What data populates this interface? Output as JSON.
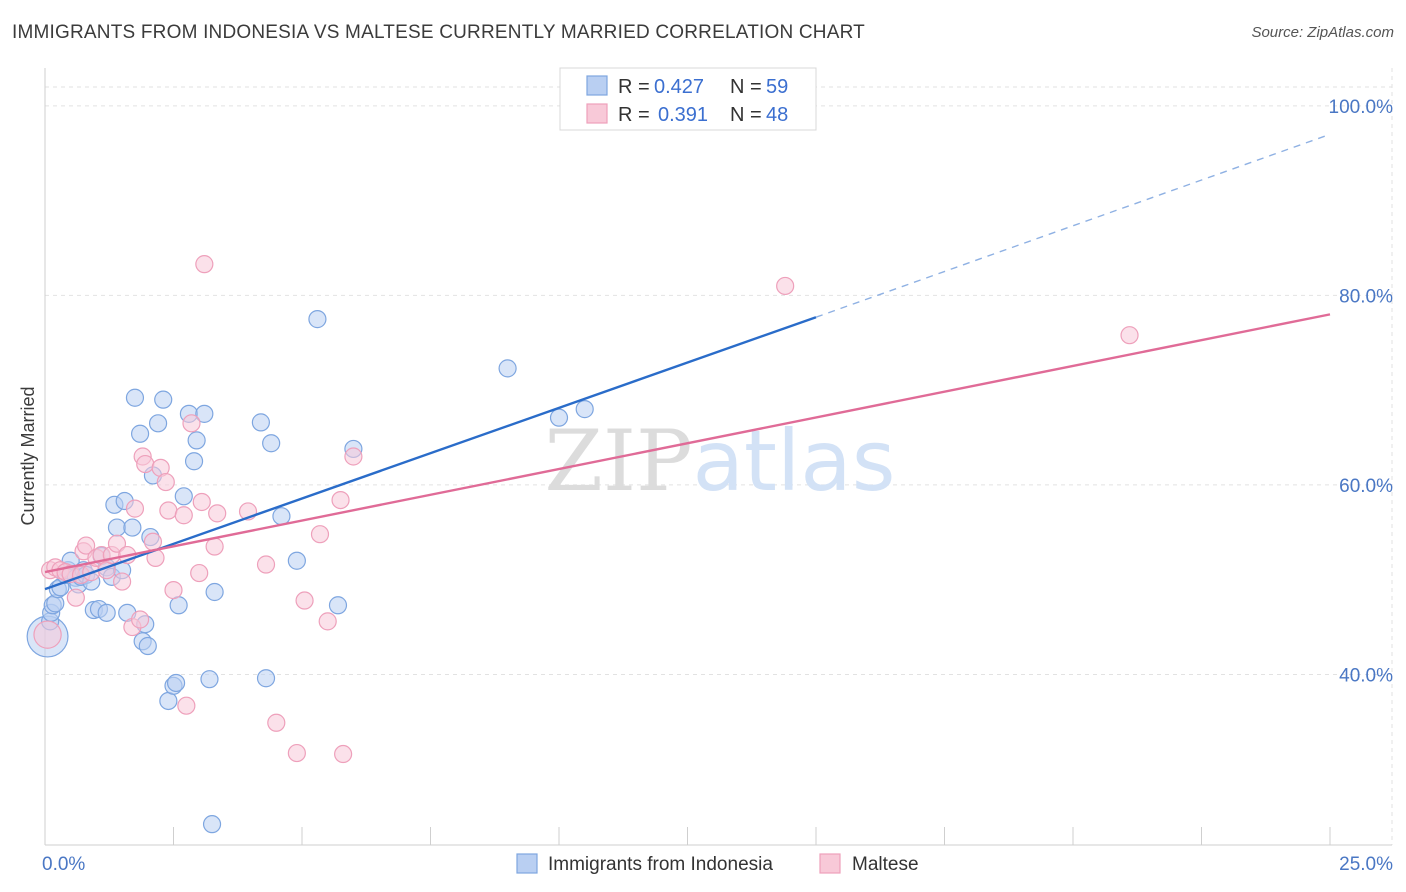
{
  "chart_data": {
    "type": "scatter",
    "title": "IMMIGRANTS FROM INDONESIA VS MALTESE CURRENTLY MARRIED CORRELATION CHART",
    "source": "Source: ZipAtlas.com",
    "xlabel": "",
    "ylabel": "Currently Married",
    "xlim": [
      0,
      25
    ],
    "ylim": [
      22,
      104
    ],
    "x_tick_labels": [
      {
        "value": 0,
        "label": "0.0%"
      },
      {
        "value": 25,
        "label": "25.0%"
      }
    ],
    "y_tick_labels": [
      {
        "value": 40,
        "label": "40.0%"
      },
      {
        "value": 60,
        "label": "60.0%"
      },
      {
        "value": 80,
        "label": "80.0%"
      },
      {
        "value": 100,
        "label": "100.0%"
      }
    ],
    "grid": true,
    "watermark": "ZIPatlas",
    "legend": {
      "position": "top-center",
      "entries": [
        {
          "r_label": "R =",
          "r_value": "0.427",
          "n_label": "N =",
          "n_value": "59"
        },
        {
          "r_label": "R =",
          "r_value": "0.391",
          "n_label": "N =",
          "n_value": "48"
        }
      ]
    },
    "series": [
      {
        "name": "Immigrants from Indonesia",
        "color": "#7ea6e0",
        "fill": "#b9cff2",
        "line_color": "#2a6cc9",
        "trend": {
          "x0": 0,
          "y0": 49.0,
          "x1": 15.0,
          "y1": 77.7,
          "dash_to_x": 25,
          "dash_to_y": 97.0
        },
        "points": [
          [
            0.05,
            44.0,
            2.4
          ],
          [
            0.1,
            45.6,
            1
          ],
          [
            0.12,
            46.5,
            1
          ],
          [
            0.15,
            47.3,
            1
          ],
          [
            0.2,
            47.5,
            1
          ],
          [
            0.25,
            49.0,
            1
          ],
          [
            0.3,
            49.2,
            1
          ],
          [
            0.4,
            50.5,
            1
          ],
          [
            0.45,
            51.0,
            1
          ],
          [
            0.5,
            52.0,
            1
          ],
          [
            0.6,
            50.2,
            1
          ],
          [
            0.65,
            49.5,
            1
          ],
          [
            0.7,
            50.3,
            1
          ],
          [
            0.75,
            51.0,
            1
          ],
          [
            0.8,
            50.5,
            1
          ],
          [
            0.9,
            49.8,
            1
          ],
          [
            0.95,
            46.8,
            1
          ],
          [
            1.05,
            46.9,
            1
          ],
          [
            1.1,
            52.5,
            1
          ],
          [
            1.2,
            46.5,
            1
          ],
          [
            1.2,
            51.3,
            1
          ],
          [
            1.3,
            50.3,
            1
          ],
          [
            1.35,
            57.9,
            1
          ],
          [
            1.4,
            55.5,
            1
          ],
          [
            1.5,
            51.0,
            1
          ],
          [
            1.55,
            58.3,
            1
          ],
          [
            1.6,
            46.5,
            1
          ],
          [
            1.7,
            55.5,
            1
          ],
          [
            1.75,
            69.2,
            1
          ],
          [
            1.85,
            65.4,
            1
          ],
          [
            1.9,
            43.5,
            1
          ],
          [
            1.95,
            45.3,
            1
          ],
          [
            2.0,
            43.0,
            1
          ],
          [
            2.05,
            54.5,
            1
          ],
          [
            2.1,
            61.0,
            1
          ],
          [
            2.2,
            66.5,
            1
          ],
          [
            2.3,
            69.0,
            1
          ],
          [
            2.4,
            37.2,
            1
          ],
          [
            2.5,
            38.8,
            1
          ],
          [
            2.55,
            39.1,
            1
          ],
          [
            2.6,
            47.3,
            1
          ],
          [
            2.7,
            58.8,
            1
          ],
          [
            2.8,
            67.5,
            1
          ],
          [
            2.9,
            62.5,
            1
          ],
          [
            2.95,
            64.7,
            1
          ],
          [
            3.1,
            67.5,
            1
          ],
          [
            3.2,
            39.5,
            1
          ],
          [
            3.25,
            24.2,
            1
          ],
          [
            3.3,
            48.7,
            1
          ],
          [
            4.2,
            66.6,
            1
          ],
          [
            4.3,
            39.6,
            1
          ],
          [
            4.4,
            64.4,
            1
          ],
          [
            4.6,
            56.7,
            1
          ],
          [
            4.9,
            52.0,
            1
          ],
          [
            5.3,
            77.5,
            1
          ],
          [
            5.7,
            47.3,
            1
          ],
          [
            6.0,
            63.8,
            1
          ],
          [
            9.0,
            72.3,
            1
          ],
          [
            10.0,
            67.1,
            1
          ],
          [
            10.5,
            68.0,
            1
          ]
        ]
      },
      {
        "name": "Maltese",
        "color": "#eea0bb",
        "fill": "#f8c9d8",
        "line_color": "#e06b97",
        "trend": {
          "x0": 0,
          "y0": 50.8,
          "x1": 25,
          "y1": 78.0
        },
        "points": [
          [
            0.05,
            44.2,
            1.6
          ],
          [
            0.1,
            51.0,
            1
          ],
          [
            0.2,
            51.3,
            1
          ],
          [
            0.3,
            51.0,
            1
          ],
          [
            0.4,
            50.8,
            1
          ],
          [
            0.5,
            50.6,
            1
          ],
          [
            0.6,
            48.1,
            1
          ],
          [
            0.7,
            50.5,
            1
          ],
          [
            0.75,
            53.0,
            1
          ],
          [
            0.8,
            53.6,
            1
          ],
          [
            0.9,
            50.8,
            1
          ],
          [
            1.0,
            52.3,
            1
          ],
          [
            1.1,
            52.6,
            1
          ],
          [
            1.2,
            51.0,
            1
          ],
          [
            1.3,
            52.6,
            1
          ],
          [
            1.4,
            53.8,
            1
          ],
          [
            1.5,
            49.8,
            1
          ],
          [
            1.6,
            52.6,
            1
          ],
          [
            1.7,
            45.0,
            1
          ],
          [
            1.75,
            57.5,
            1
          ],
          [
            1.85,
            45.8,
            1
          ],
          [
            1.9,
            63.0,
            1
          ],
          [
            1.95,
            62.2,
            1
          ],
          [
            2.1,
            54.0,
            1
          ],
          [
            2.15,
            52.3,
            1
          ],
          [
            2.25,
            61.8,
            1
          ],
          [
            2.35,
            60.3,
            1
          ],
          [
            2.4,
            57.3,
            1
          ],
          [
            2.5,
            48.9,
            1
          ],
          [
            2.7,
            56.8,
            1
          ],
          [
            2.75,
            36.7,
            1
          ],
          [
            2.85,
            66.5,
            1
          ],
          [
            3.0,
            50.7,
            1
          ],
          [
            3.05,
            58.2,
            1
          ],
          [
            3.1,
            83.3,
            1
          ],
          [
            3.3,
            53.5,
            1
          ],
          [
            3.35,
            57.0,
            1
          ],
          [
            3.95,
            57.2,
            1
          ],
          [
            4.3,
            51.6,
            1
          ],
          [
            4.5,
            34.9,
            1
          ],
          [
            4.9,
            31.7,
            1
          ],
          [
            5.05,
            47.8,
            1
          ],
          [
            5.35,
            54.8,
            1
          ],
          [
            5.5,
            45.6,
            1
          ],
          [
            5.75,
            58.4,
            1
          ],
          [
            5.8,
            31.6,
            1
          ],
          [
            6.0,
            63.0,
            1
          ],
          [
            14.4,
            81.0,
            1
          ],
          [
            21.1,
            75.8,
            1
          ]
        ]
      }
    ]
  }
}
